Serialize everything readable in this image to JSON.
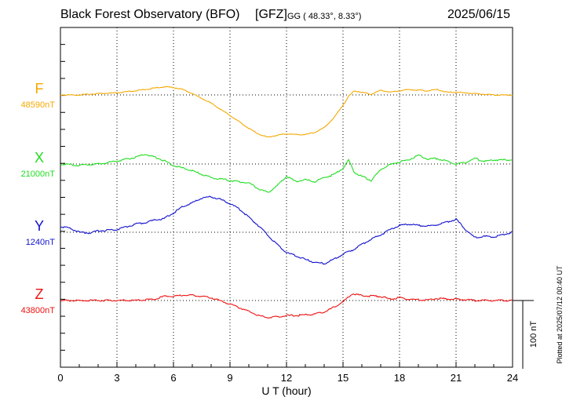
{
  "header": {
    "station": "Black Forest Observatory (BFO)",
    "institute": "[GFZ]",
    "coords": "GG ( 48.33°,   8.33°)",
    "date": "2025/06/15"
  },
  "footnote": "Plotted at 2025/07/12 00:40 UT",
  "scale_bar_label": "100 nT",
  "chart_data": {
    "type": "line",
    "title": "Black Forest Observatory (BFO)",
    "xlabel": "U T (hour)",
    "ylabel": "",
    "xlim": [
      0,
      24
    ],
    "xticks": [
      0,
      3,
      6,
      9,
      12,
      15,
      18,
      21,
      24
    ],
    "grid": true,
    "units": "nT",
    "scale_bar_nT": 100,
    "series": [
      {
        "name": "F",
        "baseline_label": "48590nT",
        "baseline_nT": 48590,
        "color": "#f5a800",
        "x": [
          0,
          1,
          2,
          3,
          4,
          5,
          5.5,
          6,
          6.5,
          7,
          8,
          9,
          10,
          10.5,
          11,
          11.5,
          12,
          12.5,
          13,
          13.5,
          14,
          14.5,
          15,
          15.3,
          15.6,
          16,
          16.5,
          17,
          17.5,
          18,
          18.5,
          19,
          19.5,
          20,
          20.5,
          21,
          22,
          23,
          24
        ],
        "y": [
          48590,
          48590,
          48592,
          48593,
          48596,
          48600,
          48602,
          48601,
          48598,
          48592,
          48578,
          48560,
          48541,
          48533,
          48528,
          48531,
          48533,
          48532,
          48532,
          48535,
          48542,
          48556,
          48575,
          48588,
          48596,
          48594,
          48591,
          48597,
          48594,
          48596,
          48598,
          48597,
          48596,
          48598,
          48594,
          48594,
          48592,
          48590,
          48590
        ]
      },
      {
        "name": "X",
        "baseline_label": "21000nT",
        "baseline_nT": 21000,
        "color": "#22dd22",
        "x": [
          0,
          1,
          2,
          3,
          4,
          4.5,
          5,
          5.5,
          6,
          7,
          8,
          9,
          10,
          10.5,
          11,
          11.5,
          12,
          12.5,
          13,
          13.5,
          14,
          14.5,
          15,
          15.3,
          15.6,
          16,
          16.5,
          17,
          17.5,
          18,
          18.5,
          19,
          19.5,
          20,
          20.5,
          21,
          21.5,
          22,
          22.5,
          23,
          24
        ],
        "y": [
          21000,
          20998,
          21000,
          21004,
          21010,
          21014,
          21010,
          21005,
          20998,
          20990,
          20980,
          20976,
          20972,
          20964,
          20958,
          20968,
          20982,
          20974,
          20977,
          20974,
          20980,
          20984,
          20994,
          21006,
          20988,
          20982,
          20976,
          20992,
          20999,
          21003,
          21006,
          21013,
          21007,
          21008,
          21004,
          21000,
          21002,
          21008,
          21004,
          21006,
          21006
        ]
      },
      {
        "name": "Y",
        "baseline_label": "1240nT",
        "baseline_nT": 1240,
        "color": "#1111cc",
        "x": [
          0,
          0.5,
          1,
          1.5,
          2,
          3,
          4,
          4.5,
          5,
          5.5,
          6,
          6.5,
          7,
          7.5,
          8,
          8.5,
          9,
          9.5,
          10,
          10.5,
          11,
          11.5,
          12,
          12.5,
          13,
          13.5,
          14,
          14.5,
          15,
          15.5,
          16,
          16.5,
          17,
          17.5,
          18,
          18.5,
          19,
          19.5,
          20,
          20.5,
          21,
          21.5,
          22,
          22.5,
          23,
          24
        ],
        "y": [
          1248,
          1246,
          1240,
          1239,
          1242,
          1244,
          1252,
          1254,
          1258,
          1260,
          1268,
          1278,
          1283,
          1290,
          1292,
          1288,
          1282,
          1274,
          1262,
          1250,
          1236,
          1222,
          1210,
          1206,
          1200,
          1196,
          1194,
          1200,
          1208,
          1214,
          1222,
          1230,
          1236,
          1244,
          1250,
          1252,
          1250,
          1249,
          1251,
          1255,
          1259,
          1244,
          1232,
          1234,
          1233,
          1240
        ]
      },
      {
        "name": "Z",
        "baseline_label": "43800nT",
        "baseline_nT": 43800,
        "color": "#ee1111",
        "x": [
          0,
          1,
          2,
          3,
          4,
          5,
          5.5,
          6,
          6.5,
          7,
          7.5,
          8,
          9,
          10,
          10.5,
          11,
          11.5,
          12,
          12.5,
          13,
          13.5,
          14,
          14.5,
          15,
          15.5,
          16,
          17,
          17.5,
          18,
          18.5,
          19,
          19.5,
          20,
          21,
          22,
          23,
          24
        ],
        "y": [
          43800,
          43800,
          43800,
          43800,
          43800,
          43802,
          43806,
          43806,
          43808,
          43808,
          43806,
          43804,
          43795,
          43784,
          43778,
          43775,
          43776,
          43778,
          43778,
          43779,
          43780,
          43783,
          43790,
          43798,
          43810,
          43807,
          43806,
          43802,
          43804,
          43802,
          43801,
          43801,
          43803,
          43802,
          43800,
          43800,
          43800
        ]
      }
    ]
  }
}
